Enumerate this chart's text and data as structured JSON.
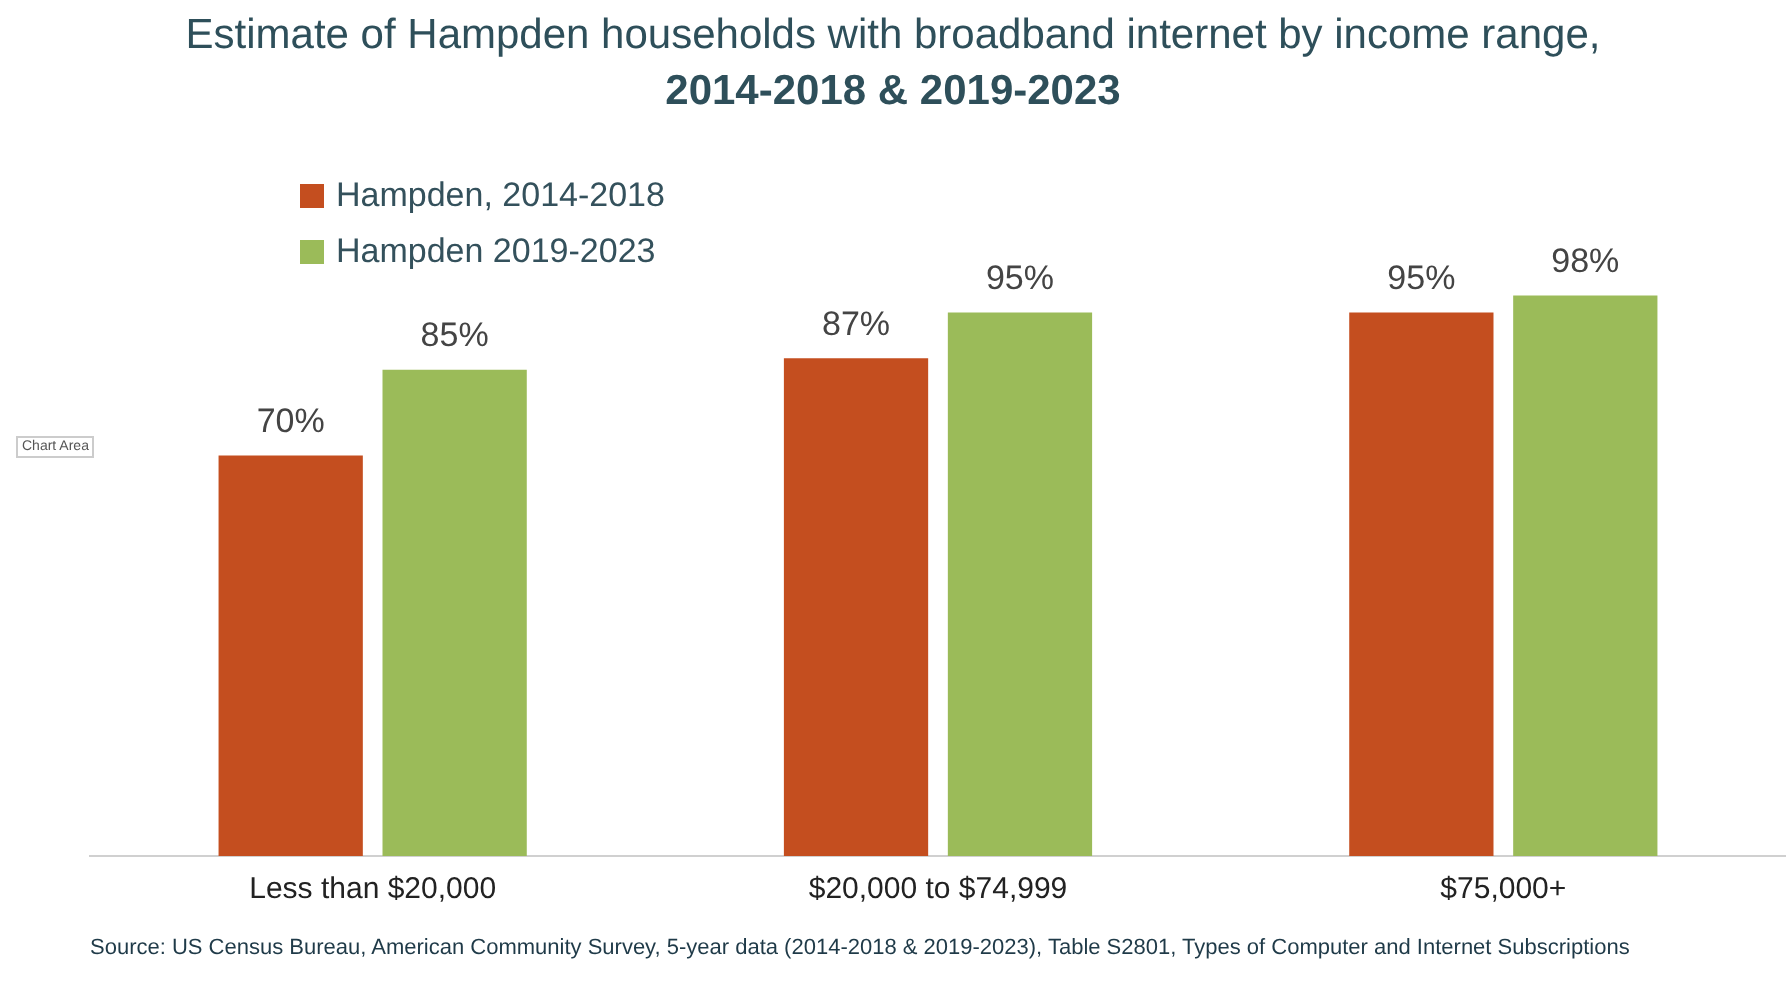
{
  "chart_data": {
    "type": "bar",
    "title": "Estimate of Hampden households with broadband internet by income range,",
    "subtitle": "2014-2018 & 2019-2023",
    "categories": [
      "Less than $20,000",
      "$20,000 to $74,999",
      "$75,000+"
    ],
    "series": [
      {
        "name": "Hampden, 2014-2018",
        "color": "#c44e1f",
        "values": [
          70,
          87,
          95
        ],
        "value_labels": [
          "70%",
          "87%",
          "95%"
        ]
      },
      {
        "name": "Hampden 2019-2023",
        "color": "#9bbb59",
        "values": [
          85,
          95,
          98
        ],
        "value_labels": [
          "85%",
          "95%",
          "98%"
        ]
      }
    ],
    "legend": "top left",
    "grid": false,
    "annotations": [
      "Chart Area",
      "Source: US Census Bureau, American Community Survey, 5-year data (2014-2018 & 2019-2023), Table S2801, Types of Computer and Internet Subscriptions"
    ]
  }
}
